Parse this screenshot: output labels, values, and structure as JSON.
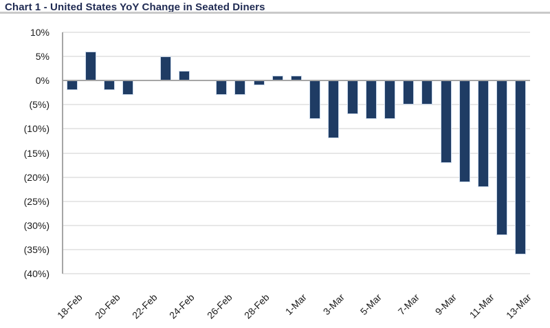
{
  "header": {
    "title": "Chart 1 - United States YoY Change in Seated Diners"
  },
  "chart_data": {
    "type": "bar",
    "title": "Chart 1 - United States YoY Change in Seated Diners",
    "categories": [
      "18-Feb",
      "19-Feb",
      "20-Feb",
      "21-Feb",
      "22-Feb",
      "23-Feb",
      "24-Feb",
      "25-Feb",
      "26-Feb",
      "27-Feb",
      "28-Feb",
      "29-Feb",
      "1-Mar",
      "2-Mar",
      "3-Mar",
      "4-Mar",
      "5-Mar",
      "6-Mar",
      "7-Mar",
      "8-Mar",
      "9-Mar",
      "10-Mar",
      "11-Mar",
      "12-Mar",
      "13-Mar"
    ],
    "values": [
      -2,
      6,
      -2,
      -3,
      0,
      5,
      2,
      0,
      -3,
      -3,
      -1,
      1,
      1,
      -8,
      -12,
      -7,
      -8,
      -8,
      -5,
      -5,
      -17,
      -21,
      -22,
      -32,
      -36
    ],
    "series_name": "United States YoY Change in Seated Diners",
    "xlabel": "",
    "ylabel": "",
    "x_tick_labels": [
      "18-Feb",
      "20-Feb",
      "22-Feb",
      "24-Feb",
      "26-Feb",
      "28-Feb",
      "1-Mar",
      "3-Mar",
      "5-Mar",
      "7-Mar",
      "9-Mar",
      "11-Mar",
      "13-Mar"
    ],
    "y_tick_labels": [
      "10%",
      "5%",
      "0%",
      "(5%)",
      "(10%)",
      "(15%)",
      "(20%)",
      "(25%)",
      "(30%)",
      "(35%)",
      "(40%)"
    ],
    "y_tick_values": [
      10,
      5,
      0,
      -5,
      -10,
      -15,
      -20,
      -25,
      -30,
      -35,
      -40
    ],
    "ylim": [
      -40,
      10
    ],
    "y_step": 5,
    "grid": true,
    "legend_position": "none",
    "colors": {
      "bar_fill": "#1f3c64",
      "bar_border": "#cbd9eb",
      "gridline": "#e7e7e7",
      "zero_line": "#a6a6a6",
      "axis_line": "#a6a6a6",
      "title_text": "#1f2a52",
      "tick_text": "#1a1a1a",
      "title_rule": "#c9c9c9",
      "background": "#ffffff"
    }
  }
}
